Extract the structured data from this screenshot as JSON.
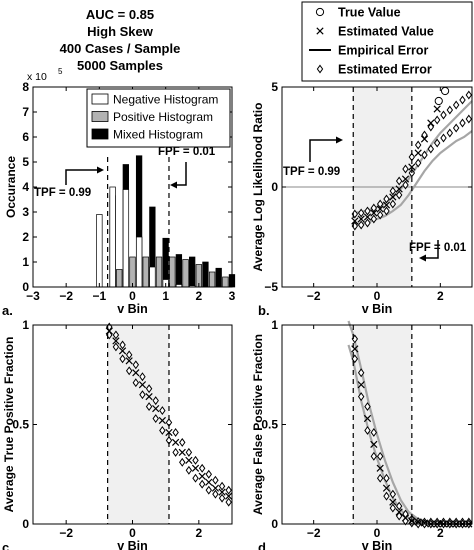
{
  "header": {
    "lines": [
      "AUC = 0.85",
      "High Skew",
      "400 Cases / Sample",
      "5000 Samples"
    ]
  },
  "top_legend": {
    "items": [
      {
        "label": "True Value",
        "marker": "circle"
      },
      {
        "label": "Estimated Value",
        "marker": "x"
      },
      {
        "label": "Empirical Error",
        "marker": "line"
      },
      {
        "label": "Estimated Error",
        "marker": "diamond"
      }
    ]
  },
  "colors": {
    "axis": "#000000",
    "negative_bar": "#ffffff",
    "positive_bar": "#b3b3b3",
    "mixed_bar": "#000000",
    "shade": "#f0f0f0",
    "empirical_error": "#a6a6a6"
  },
  "chart_data": [
    {
      "id": "a",
      "type": "bar",
      "panel_label": "a.",
      "xlabel": "v Bin",
      "ylabel": "Occurance",
      "y_multiplier": "x 10",
      "y_multiplier_exp": "5",
      "xlim": [
        -3,
        3
      ],
      "ylim": [
        0,
        8
      ],
      "xticks": [
        -3,
        -2,
        -1,
        0,
        1,
        2,
        3
      ],
      "yticks": [
        0,
        1,
        2,
        3,
        4,
        5,
        6,
        7,
        8
      ],
      "x": [
        -0.8,
        -0.4,
        0.0,
        0.4,
        0.8,
        1.2,
        1.6,
        2.0,
        2.4,
        2.8
      ],
      "series": [
        {
          "name": "Negative Histogram",
          "values": [
            2.9,
            4.0,
            3.9,
            2.0,
            0.8,
            0.3,
            0.1,
            0.05,
            0.0,
            0.0
          ]
        },
        {
          "name": "Positive Histogram",
          "values": [
            0.0,
            0.7,
            1.2,
            1.2,
            1.2,
            1.2,
            1.1,
            0.9,
            0.6,
            0.4
          ]
        },
        {
          "name": "Mixed Histogram",
          "values": [
            3.65,
            4.9,
            5.25,
            3.2,
            1.95,
            1.3,
            1.2,
            1.0,
            0.75,
            0.5
          ]
        }
      ],
      "legend_position": "top-right",
      "annotations": [
        {
          "text": "TPF = 0.99"
        },
        {
          "text": "FPF = 0.01"
        }
      ],
      "threshold_lines": [
        -0.75,
        1.1
      ]
    },
    {
      "id": "b",
      "type": "scatter",
      "panel_label": "b.",
      "xlabel": "v Bin",
      "ylabel": "Average Log Likelihood Ratio",
      "xlim": [
        -3,
        3
      ],
      "ylim": [
        -5,
        5
      ],
      "xticks": [
        -2,
        0,
        2
      ],
      "yticks": [
        -5,
        0,
        5
      ],
      "shaded_region": [
        -0.75,
        1.1
      ],
      "zero_line": true,
      "annotations": [
        {
          "text": "TPF = 0.99"
        },
        {
          "text": "FPF = 0.01"
        }
      ],
      "series": [
        {
          "name": "True Value",
          "marker": "circle",
          "x": [
            1.95,
            2.15
          ],
          "y": [
            4.3,
            4.8
          ]
        },
        {
          "name": "Estimated Value",
          "marker": "x",
          "x": [
            -0.7,
            -0.5,
            -0.3,
            -0.1,
            0.1,
            0.3,
            0.5,
            0.7,
            0.9,
            1.1,
            1.3,
            1.5,
            1.7,
            1.9
          ],
          "y": [
            -1.7,
            -1.6,
            -1.5,
            -1.3,
            -1.1,
            -0.9,
            -0.5,
            -0.1,
            0.4,
            1.0,
            1.7,
            2.4,
            3.2,
            3.9
          ]
        },
        {
          "name": "Empirical Error",
          "marker": "line",
          "x": [
            -0.75,
            -0.5,
            -0.25,
            0,
            0.25,
            0.5,
            0.75,
            1.0,
            1.25,
            1.5,
            1.75,
            2.0,
            2.25,
            2.5,
            2.75,
            3.0
          ],
          "y_upper": [
            -1.3,
            -1.25,
            -1.15,
            -1.0,
            -0.8,
            -0.5,
            -0.1,
            0.4,
            1.0,
            1.6,
            2.2,
            2.7,
            3.1,
            3.5,
            3.9,
            4.3
          ],
          "y_lower": [
            -1.9,
            -1.85,
            -1.75,
            -1.6,
            -1.45,
            -1.2,
            -0.9,
            -0.4,
            0.2,
            0.8,
            1.3,
            1.7,
            2.0,
            2.3,
            2.5,
            2.8
          ]
        },
        {
          "name": "Estimated Error",
          "marker": "diamond",
          "x": [
            -0.7,
            -0.5,
            -0.3,
            -0.1,
            0.1,
            0.3,
            0.5,
            0.7,
            0.9,
            1.1,
            1.3,
            1.5,
            1.7,
            1.9,
            2.1,
            2.3,
            2.5,
            2.7,
            2.9
          ],
          "y_upper": [
            -1.35,
            -1.3,
            -1.2,
            -1.05,
            -0.85,
            -0.6,
            -0.2,
            0.3,
            0.9,
            1.5,
            2.1,
            2.6,
            3.0,
            3.35,
            3.6,
            3.85,
            4.1,
            4.35,
            4.6
          ],
          "y_lower": [
            -1.95,
            -1.9,
            -1.8,
            -1.6,
            -1.4,
            -1.2,
            -0.85,
            -0.4,
            0.1,
            0.7,
            1.2,
            1.6,
            1.9,
            2.2,
            2.45,
            2.7,
            2.95,
            3.2,
            3.4
          ]
        }
      ]
    },
    {
      "id": "c",
      "type": "scatter",
      "panel_label": "c.",
      "xlabel": "v Bin",
      "ylabel": "Average True Positive Fraction",
      "xlim": [
        -3,
        3
      ],
      "ylim": [
        0,
        1
      ],
      "xticks": [
        -2,
        0,
        2
      ],
      "yticks": [
        0,
        0.5,
        1
      ],
      "shaded_region": [
        -0.75,
        1.1
      ],
      "series": [
        {
          "name": "Estimated Value",
          "marker": "x",
          "x": [
            -0.7,
            -0.5,
            -0.3,
            -0.1,
            0.1,
            0.3,
            0.5,
            0.7,
            0.9,
            1.1,
            1.3,
            1.5,
            1.7,
            1.9,
            2.1,
            2.3,
            2.5,
            2.7,
            2.9
          ],
          "y": [
            0.97,
            0.92,
            0.87,
            0.82,
            0.76,
            0.7,
            0.64,
            0.58,
            0.52,
            0.46,
            0.41,
            0.36,
            0.32,
            0.28,
            0.24,
            0.21,
            0.18,
            0.16,
            0.14
          ]
        },
        {
          "name": "Estimated Error",
          "marker": "diamond",
          "x": [
            -0.7,
            -0.5,
            -0.3,
            -0.1,
            0.1,
            0.3,
            0.5,
            0.7,
            0.9,
            1.1,
            1.3,
            1.5,
            1.7,
            1.9,
            2.1,
            2.3,
            2.5,
            2.7,
            2.9
          ],
          "y_upper": [
            0.99,
            0.95,
            0.9,
            0.85,
            0.8,
            0.74,
            0.68,
            0.62,
            0.57,
            0.51,
            0.46,
            0.41,
            0.36,
            0.32,
            0.28,
            0.25,
            0.22,
            0.19,
            0.17
          ],
          "y_lower": [
            0.95,
            0.89,
            0.83,
            0.77,
            0.71,
            0.65,
            0.59,
            0.53,
            0.47,
            0.42,
            0.36,
            0.31,
            0.27,
            0.23,
            0.2,
            0.17,
            0.15,
            0.13,
            0.11
          ]
        }
      ]
    },
    {
      "id": "d",
      "type": "scatter",
      "panel_label": "d.",
      "xlabel": "v Bin",
      "ylabel": "Average False Positive Fraction",
      "xlim": [
        -3,
        3
      ],
      "ylim": [
        0,
        1
      ],
      "xticks": [
        -2,
        0,
        2
      ],
      "yticks": [
        0,
        0.5,
        1
      ],
      "shaded_region": [
        -0.75,
        1.1
      ],
      "series": [
        {
          "name": "Estimated Value",
          "marker": "x",
          "x": [
            -0.7,
            -0.5,
            -0.3,
            -0.1,
            0.1,
            0.3,
            0.5,
            0.7,
            0.9,
            1.1,
            1.3,
            1.5,
            1.7,
            1.9,
            2.1,
            2.3,
            2.5,
            2.7,
            2.9
          ],
          "y": [
            0.88,
            0.7,
            0.53,
            0.4,
            0.28,
            0.18,
            0.11,
            0.06,
            0.03,
            0.015,
            0.01,
            0.005,
            0.0,
            0.0,
            0.0,
            0.0,
            0.0,
            0.0,
            0.0
          ]
        },
        {
          "name": "Empirical Error",
          "marker": "line",
          "x": [
            -0.9,
            -0.75,
            -0.5,
            -0.25,
            0,
            0.25,
            0.5,
            0.75,
            1.0,
            1.25,
            1.5,
            2.0,
            2.5,
            3.0
          ],
          "y_upper": [
            1.02,
            0.95,
            0.78,
            0.6,
            0.45,
            0.32,
            0.21,
            0.12,
            0.06,
            0.03,
            0.015,
            0.005,
            0.0,
            0.0
          ],
          "y_lower": [
            0.9,
            0.82,
            0.62,
            0.46,
            0.33,
            0.22,
            0.13,
            0.07,
            0.03,
            0.01,
            0.005,
            0.0,
            0.0,
            0.0
          ]
        },
        {
          "name": "Estimated Error",
          "marker": "diamond",
          "x": [
            -0.7,
            -0.5,
            -0.3,
            -0.1,
            0.1,
            0.3,
            0.5,
            0.7,
            0.9,
            1.1,
            1.3,
            1.5,
            1.7,
            1.9,
            2.1,
            2.3,
            2.5,
            2.7,
            2.9
          ],
          "y_upper": [
            0.93,
            0.76,
            0.59,
            0.46,
            0.34,
            0.23,
            0.15,
            0.09,
            0.05,
            0.025,
            0.012,
            0.01,
            0.01,
            0.01,
            0.01,
            0.01,
            0.01,
            0.01,
            0.01
          ],
          "y_lower": [
            0.83,
            0.64,
            0.47,
            0.34,
            0.23,
            0.14,
            0.08,
            0.04,
            0.015,
            0.005,
            0.0,
            0.0,
            0.0,
            0.0,
            0.0,
            0.0,
            0.0,
            0.0,
            0.0
          ]
        }
      ]
    }
  ]
}
